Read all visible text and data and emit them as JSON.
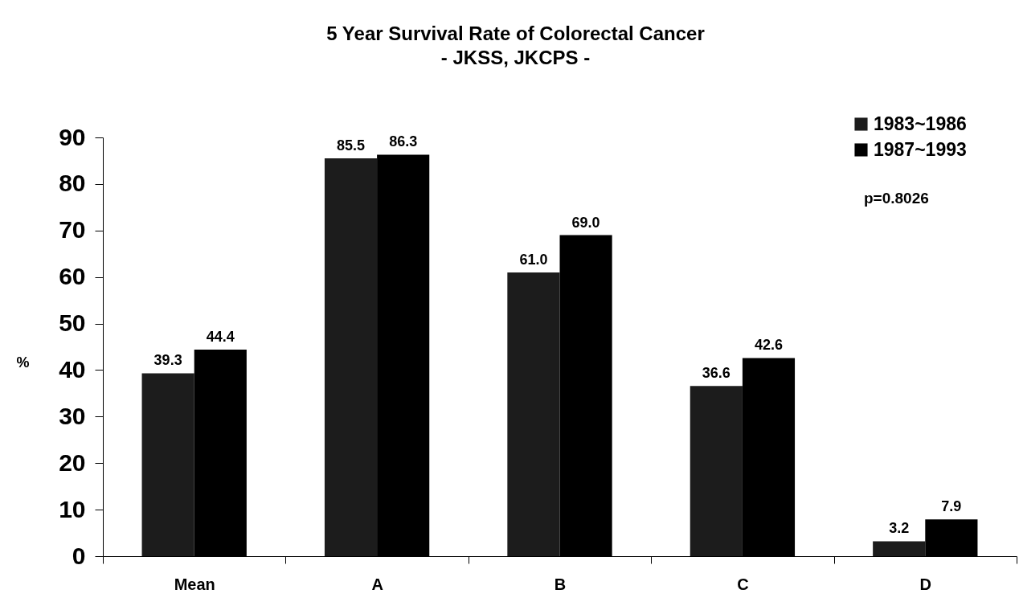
{
  "chart_data": {
    "type": "bar",
    "title": "5 Year Survival Rate of Colorectal Cancer",
    "subtitle": "- JKSS, JKCPS -",
    "ylabel": "%",
    "categories": [
      "Mean",
      "A",
      "B",
      "C",
      "D"
    ],
    "series": [
      {
        "name": "1983~1986",
        "color": "#1c1c1c",
        "values": [
          39.3,
          85.5,
          61.0,
          36.6,
          3.2
        ],
        "value_labels": [
          "39.3",
          "85.5",
          "61.0",
          "36.6",
          "3.2"
        ]
      },
      {
        "name": "1987~1993",
        "color": "#000000",
        "values": [
          44.4,
          86.3,
          69.0,
          42.6,
          7.9
        ],
        "value_labels": [
          "44.4",
          "86.3",
          "69.0",
          "42.6",
          "7.9"
        ]
      }
    ],
    "ylim": [
      0,
      90
    ],
    "yticks": [
      0,
      10,
      20,
      30,
      40,
      50,
      60,
      70,
      80,
      90
    ],
    "grid": false,
    "legend": "top right",
    "annotations": [
      "p=0.8026"
    ]
  }
}
